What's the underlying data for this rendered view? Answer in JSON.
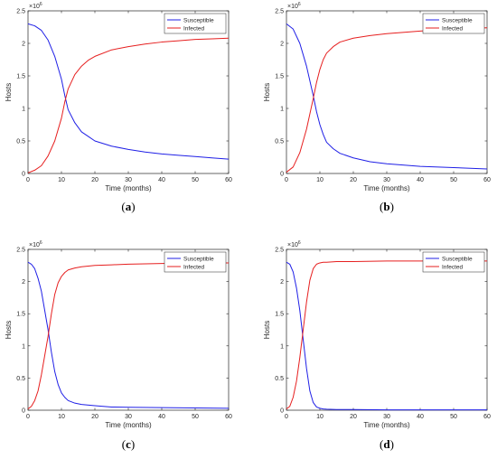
{
  "colors": {
    "susceptible": "#1f1fe6",
    "infected": "#e61f1f",
    "axis": "#262626"
  },
  "chart_data": [
    {
      "type": "line",
      "caption": "a",
      "xlabel": "Time (months)",
      "ylabel": "Hosts",
      "y_exponent": "10",
      "y_exponent_power": "6",
      "xlim": [
        0,
        60
      ],
      "ylim": [
        0,
        2.5
      ],
      "xticks": [
        0,
        10,
        20,
        30,
        40,
        50,
        60
      ],
      "yticks": [
        0,
        0.5,
        1,
        1.5,
        2,
        2.5
      ],
      "legend_position": "top-right",
      "series": [
        {
          "name": "Susceptible",
          "color": "#1f1fe6",
          "x": [
            0,
            2,
            4,
            6,
            8,
            10,
            11,
            12,
            14,
            16,
            18,
            20,
            25,
            30,
            35,
            40,
            45,
            50,
            55,
            60
          ],
          "y": [
            2.3,
            2.27,
            2.2,
            2.05,
            1.8,
            1.45,
            1.2,
            0.98,
            0.78,
            0.64,
            0.57,
            0.5,
            0.42,
            0.37,
            0.33,
            0.3,
            0.28,
            0.26,
            0.24,
            0.22
          ]
        },
        {
          "name": "Infected",
          "color": "#e61f1f",
          "x": [
            0,
            2,
            4,
            6,
            8,
            10,
            11,
            12,
            14,
            16,
            18,
            20,
            25,
            30,
            35,
            40,
            45,
            50,
            55,
            60
          ],
          "y": [
            0.01,
            0.05,
            0.12,
            0.27,
            0.5,
            0.85,
            1.1,
            1.3,
            1.52,
            1.65,
            1.74,
            1.8,
            1.9,
            1.95,
            1.99,
            2.02,
            2.04,
            2.06,
            2.07,
            2.08
          ]
        }
      ]
    },
    {
      "type": "line",
      "caption": "b",
      "xlabel": "Time (months)",
      "ylabel": "Hosts",
      "y_exponent": "10",
      "y_exponent_power": "6",
      "xlim": [
        0,
        60
      ],
      "ylim": [
        0,
        2.5
      ],
      "xticks": [
        0,
        10,
        20,
        30,
        40,
        50,
        60
      ],
      "yticks": [
        0,
        0.5,
        1,
        1.5,
        2,
        2.5
      ],
      "legend_position": "top-right",
      "series": [
        {
          "name": "Susceptible",
          "color": "#1f1fe6",
          "x": [
            0,
            2,
            4,
            6,
            8,
            9,
            10,
            11,
            12,
            14,
            16,
            20,
            25,
            30,
            40,
            50,
            60
          ],
          "y": [
            2.3,
            2.22,
            2.0,
            1.65,
            1.2,
            0.95,
            0.75,
            0.6,
            0.48,
            0.38,
            0.31,
            0.24,
            0.18,
            0.15,
            0.11,
            0.09,
            0.07
          ]
        },
        {
          "name": "Infected",
          "color": "#e61f1f",
          "x": [
            0,
            2,
            4,
            6,
            8,
            9,
            10,
            11,
            12,
            14,
            16,
            20,
            25,
            30,
            40,
            50,
            60
          ],
          "y": [
            0.02,
            0.1,
            0.32,
            0.68,
            1.15,
            1.4,
            1.6,
            1.75,
            1.85,
            1.95,
            2.02,
            2.08,
            2.12,
            2.15,
            2.19,
            2.22,
            2.24
          ]
        }
      ]
    },
    {
      "type": "line",
      "caption": "c",
      "xlabel": "Time (months)",
      "ylabel": "Hosts",
      "y_exponent": "10",
      "y_exponent_power": "6",
      "xlim": [
        0,
        60
      ],
      "ylim": [
        0,
        2.5
      ],
      "xticks": [
        0,
        10,
        20,
        30,
        40,
        50,
        60
      ],
      "yticks": [
        0,
        0.5,
        1,
        1.5,
        2,
        2.5
      ],
      "legend_position": "top-right",
      "series": [
        {
          "name": "Susceptible",
          "color": "#1f1fe6",
          "x": [
            0,
            1,
            2,
            3,
            4,
            5,
            6,
            7,
            8,
            9,
            10,
            11,
            12,
            14,
            16,
            20,
            25,
            30,
            40,
            50,
            60
          ],
          "y": [
            2.3,
            2.27,
            2.2,
            2.05,
            1.85,
            1.55,
            1.25,
            0.9,
            0.6,
            0.4,
            0.27,
            0.2,
            0.15,
            0.11,
            0.09,
            0.07,
            0.05,
            0.045,
            0.04,
            0.035,
            0.03
          ]
        },
        {
          "name": "Infected",
          "color": "#e61f1f",
          "x": [
            0,
            1,
            2,
            3,
            4,
            5,
            6,
            7,
            8,
            9,
            10,
            11,
            12,
            14,
            16,
            20,
            25,
            30,
            40,
            50,
            60
          ],
          "y": [
            0.02,
            0.06,
            0.15,
            0.3,
            0.55,
            0.85,
            1.15,
            1.5,
            1.8,
            1.98,
            2.08,
            2.14,
            2.18,
            2.21,
            2.23,
            2.25,
            2.26,
            2.27,
            2.28,
            2.29,
            2.29
          ]
        }
      ]
    },
    {
      "type": "line",
      "caption": "d",
      "xlabel": "Time (months)",
      "ylabel": "Hosts",
      "y_exponent": "10",
      "y_exponent_power": "6",
      "xlim": [
        0,
        60
      ],
      "ylim": [
        0,
        2.5
      ],
      "xticks": [
        0,
        10,
        20,
        30,
        40,
        50,
        60
      ],
      "yticks": [
        0,
        0.5,
        1,
        1.5,
        2,
        2.5
      ],
      "legend_position": "top-right",
      "series": [
        {
          "name": "Susceptible",
          "color": "#1f1fe6",
          "x": [
            0,
            1,
            2,
            3,
            4,
            5,
            6,
            7,
            8,
            9,
            10,
            11,
            12,
            15,
            20,
            30,
            40,
            50,
            60
          ],
          "y": [
            2.3,
            2.27,
            2.15,
            1.9,
            1.55,
            1.1,
            0.65,
            0.3,
            0.12,
            0.05,
            0.03,
            0.02,
            0.015,
            0.01,
            0.01,
            0.005,
            0.005,
            0.005,
            0.005
          ]
        },
        {
          "name": "Infected",
          "color": "#e61f1f",
          "x": [
            0,
            1,
            2,
            3,
            4,
            5,
            6,
            7,
            8,
            9,
            10,
            11,
            12,
            15,
            20,
            30,
            40,
            50,
            60
          ],
          "y": [
            0.02,
            0.06,
            0.2,
            0.45,
            0.82,
            1.25,
            1.68,
            2.02,
            2.2,
            2.27,
            2.29,
            2.3,
            2.3,
            2.31,
            2.31,
            2.32,
            2.32,
            2.32,
            2.32
          ]
        }
      ]
    }
  ]
}
